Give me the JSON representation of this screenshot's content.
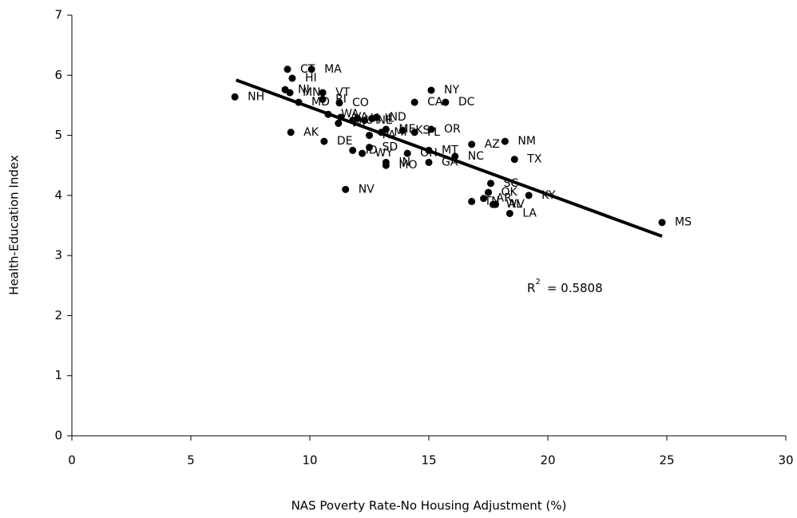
{
  "chart_data": {
    "type": "scatter",
    "x_label": "NAS Poverty Rate-No Housing Adjustment (%)",
    "y_label": "Health-Education Index",
    "color": "#000000",
    "labels": [
      "NH",
      "CT",
      "MA",
      "HI",
      "NJ",
      "MN",
      "MD",
      "VT",
      "RI",
      "CO",
      "WA",
      "VA",
      "UT",
      "WI",
      "IA",
      "NE",
      "IL",
      "ND",
      "PA",
      "ME",
      "MI",
      "KS",
      "FL",
      "OR",
      "CA",
      "DC",
      "NY",
      "AZ",
      "NM",
      "TX",
      "AK",
      "DE",
      "ID",
      "WY",
      "SD",
      "IN",
      "MO",
      "OH",
      "MT",
      "GA",
      "NC",
      "NV",
      "SC",
      "OK",
      "KY",
      "AR",
      "TN",
      "AL",
      "WV",
      "LA",
      "MS"
    ],
    "x": [
      6.85,
      9.06,
      10.07,
      9.26,
      8.96,
      9.16,
      9.53,
      10.54,
      10.54,
      11.24,
      10.77,
      11.3,
      11.8,
      11.2,
      12.0,
      12.3,
      12.6,
      12.8,
      12.5,
      13.2,
      13.0,
      13.9,
      14.4,
      15.1,
      14.4,
      15.7,
      15.1,
      16.8,
      18.2,
      18.6,
      9.2,
      10.6,
      11.8,
      12.2,
      12.5,
      13.2,
      13.2,
      14.1,
      15.0,
      15.0,
      16.1,
      11.5,
      17.6,
      17.5,
      19.2,
      17.3,
      16.8,
      17.8,
      17.7,
      18.4,
      24.8
    ],
    "values": [
      5.64,
      6.1,
      6.1,
      5.95,
      5.76,
      5.71,
      5.55,
      5.71,
      5.6,
      5.54,
      5.35,
      5.3,
      5.25,
      5.2,
      5.28,
      5.25,
      5.28,
      5.3,
      5.0,
      5.1,
      5.05,
      5.08,
      5.05,
      5.1,
      5.55,
      5.55,
      5.75,
      4.85,
      4.9,
      4.6,
      5.05,
      4.9,
      4.75,
      4.7,
      4.8,
      4.55,
      4.5,
      4.7,
      4.75,
      4.55,
      4.65,
      4.1,
      4.2,
      4.05,
      4.0,
      3.95,
      3.9,
      3.85,
      3.85,
      3.7,
      3.55
    ],
    "trendline": {
      "x": [
        6.9,
        24.8
      ],
      "y": [
        5.92,
        3.32
      ]
    },
    "r_squared_label": [
      "R",
      "2",
      "= 0.5808"
    ],
    "xlim": [
      0,
      30
    ],
    "xticks": [
      0,
      5,
      10,
      15,
      20,
      25,
      30
    ],
    "ylim": [
      0,
      7
    ],
    "yticks": [
      0,
      1,
      2,
      3,
      4,
      5,
      6,
      7
    ]
  }
}
